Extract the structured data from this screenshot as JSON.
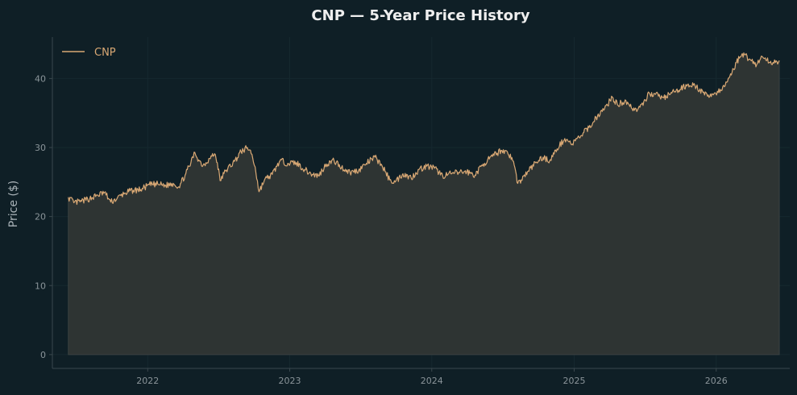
{
  "chart_data": {
    "type": "area",
    "title": "CNP — 5-Year Price History",
    "xlabel": "",
    "ylabel": "Price ($)",
    "x_ticks": [
      "2022",
      "2023",
      "2024",
      "2025",
      "2026"
    ],
    "y_ticks": [
      "0",
      "10",
      "20",
      "30",
      "40"
    ],
    "xlim": [
      "2021-05-01",
      "2026-07-09"
    ],
    "ylim": [
      -2,
      46
    ],
    "grid": true,
    "legend_position": "top-left",
    "series": [
      {
        "name": "CNP",
        "points": [
          [
            "2021-06-11",
            22.8
          ],
          [
            "2021-06-25",
            22.0
          ],
          [
            "2021-07-15",
            22.2
          ],
          [
            "2021-08-05",
            22.6
          ],
          [
            "2021-08-26",
            23.1
          ],
          [
            "2021-09-12",
            23.5
          ],
          [
            "2021-09-28",
            22.1
          ],
          [
            "2021-10-14",
            22.6
          ],
          [
            "2021-11-03",
            23.4
          ],
          [
            "2021-11-25",
            23.8
          ],
          [
            "2021-12-14",
            23.9
          ],
          [
            "2022-01-05",
            24.6
          ],
          [
            "2022-01-27",
            24.7
          ],
          [
            "2022-02-16",
            24.5
          ],
          [
            "2022-03-08",
            24.8
          ],
          [
            "2022-03-22",
            24.3
          ],
          [
            "2022-04-07",
            26.0
          ],
          [
            "2022-04-22",
            27.8
          ],
          [
            "2022-05-02",
            29.3
          ],
          [
            "2022-05-12",
            28.2
          ],
          [
            "2022-05-23",
            27.4
          ],
          [
            "2022-06-09",
            28.4
          ],
          [
            "2022-06-22",
            29.1
          ],
          [
            "2022-06-29",
            27.8
          ],
          [
            "2022-07-06",
            25.2
          ],
          [
            "2022-07-20",
            26.6
          ],
          [
            "2022-08-12",
            28.0
          ],
          [
            "2022-08-29",
            29.4
          ],
          [
            "2022-09-12",
            29.9
          ],
          [
            "2022-09-22",
            29.6
          ],
          [
            "2022-10-04",
            27.2
          ],
          [
            "2022-10-14",
            23.6
          ],
          [
            "2022-10-28",
            25.3
          ],
          [
            "2022-11-17",
            26.1
          ],
          [
            "2022-12-07",
            28.1
          ],
          [
            "2022-12-27",
            27.7
          ],
          [
            "2023-01-18",
            27.8
          ],
          [
            "2023-02-08",
            26.8
          ],
          [
            "2023-02-28",
            26.1
          ],
          [
            "2023-03-16",
            25.9
          ],
          [
            "2023-04-05",
            27.6
          ],
          [
            "2023-04-25",
            28.1
          ],
          [
            "2023-05-14",
            27.1
          ],
          [
            "2023-06-05",
            26.4
          ],
          [
            "2023-06-27",
            26.7
          ],
          [
            "2023-07-17",
            27.7
          ],
          [
            "2023-08-08",
            28.6
          ],
          [
            "2023-08-26",
            27.4
          ],
          [
            "2023-09-15",
            25.3
          ],
          [
            "2023-09-29",
            25.0
          ],
          [
            "2023-10-19",
            26.2
          ],
          [
            "2023-11-09",
            25.6
          ],
          [
            "2023-11-29",
            26.8
          ],
          [
            "2023-12-19",
            27.3
          ],
          [
            "2024-01-08",
            27.0
          ],
          [
            "2024-01-29",
            25.9
          ],
          [
            "2024-02-19",
            26.2
          ],
          [
            "2024-03-10",
            26.4
          ],
          [
            "2024-03-31",
            26.5
          ],
          [
            "2024-04-21",
            26.0
          ],
          [
            "2024-05-12",
            27.6
          ],
          [
            "2024-06-05",
            28.7
          ],
          [
            "2024-06-27",
            29.6
          ],
          [
            "2024-07-13",
            29.4
          ],
          [
            "2024-07-29",
            28.0
          ],
          [
            "2024-08-09",
            24.8
          ],
          [
            "2024-08-18",
            25.3
          ],
          [
            "2024-09-05",
            26.6
          ],
          [
            "2024-09-26",
            27.9
          ],
          [
            "2024-10-13",
            28.6
          ],
          [
            "2024-10-30",
            28.1
          ],
          [
            "2024-11-18",
            29.8
          ],
          [
            "2024-12-08",
            31.3
          ],
          [
            "2024-12-27",
            30.5
          ],
          [
            "2025-01-18",
            31.7
          ],
          [
            "2025-02-08",
            32.9
          ],
          [
            "2025-03-02",
            34.6
          ],
          [
            "2025-03-20",
            35.6
          ],
          [
            "2025-04-09",
            37.3
          ],
          [
            "2025-04-22",
            36.2
          ],
          [
            "2025-05-14",
            36.8
          ],
          [
            "2025-06-05",
            35.4
          ],
          [
            "2025-06-27",
            36.1
          ],
          [
            "2025-07-13",
            37.9
          ],
          [
            "2025-07-29",
            37.7
          ],
          [
            "2025-08-19",
            37.2
          ],
          [
            "2025-09-09",
            37.9
          ],
          [
            "2025-09-30",
            38.4
          ],
          [
            "2025-10-21",
            39.2
          ],
          [
            "2025-11-11",
            38.8
          ],
          [
            "2025-12-02",
            37.6
          ],
          [
            "2025-12-23",
            37.7
          ],
          [
            "2026-01-16",
            38.3
          ],
          [
            "2026-02-05",
            40.3
          ],
          [
            "2026-02-22",
            42.3
          ],
          [
            "2026-03-09",
            43.6
          ],
          [
            "2026-03-29",
            42.8
          ],
          [
            "2026-04-15",
            42.0
          ],
          [
            "2026-04-29",
            43.2
          ],
          [
            "2026-05-19",
            42.3
          ],
          [
            "2026-06-12",
            42.6
          ]
        ]
      }
    ]
  },
  "colors": {
    "background": "#0f1f26",
    "line": "#d9a874",
    "fill": "#2e3433",
    "axis": "#3a474d",
    "grid": "#16282f",
    "title": "#eeeeee",
    "tick_label": "#8a9499",
    "ylabel": "#aab3b8",
    "legend_text": "#d9a874"
  }
}
